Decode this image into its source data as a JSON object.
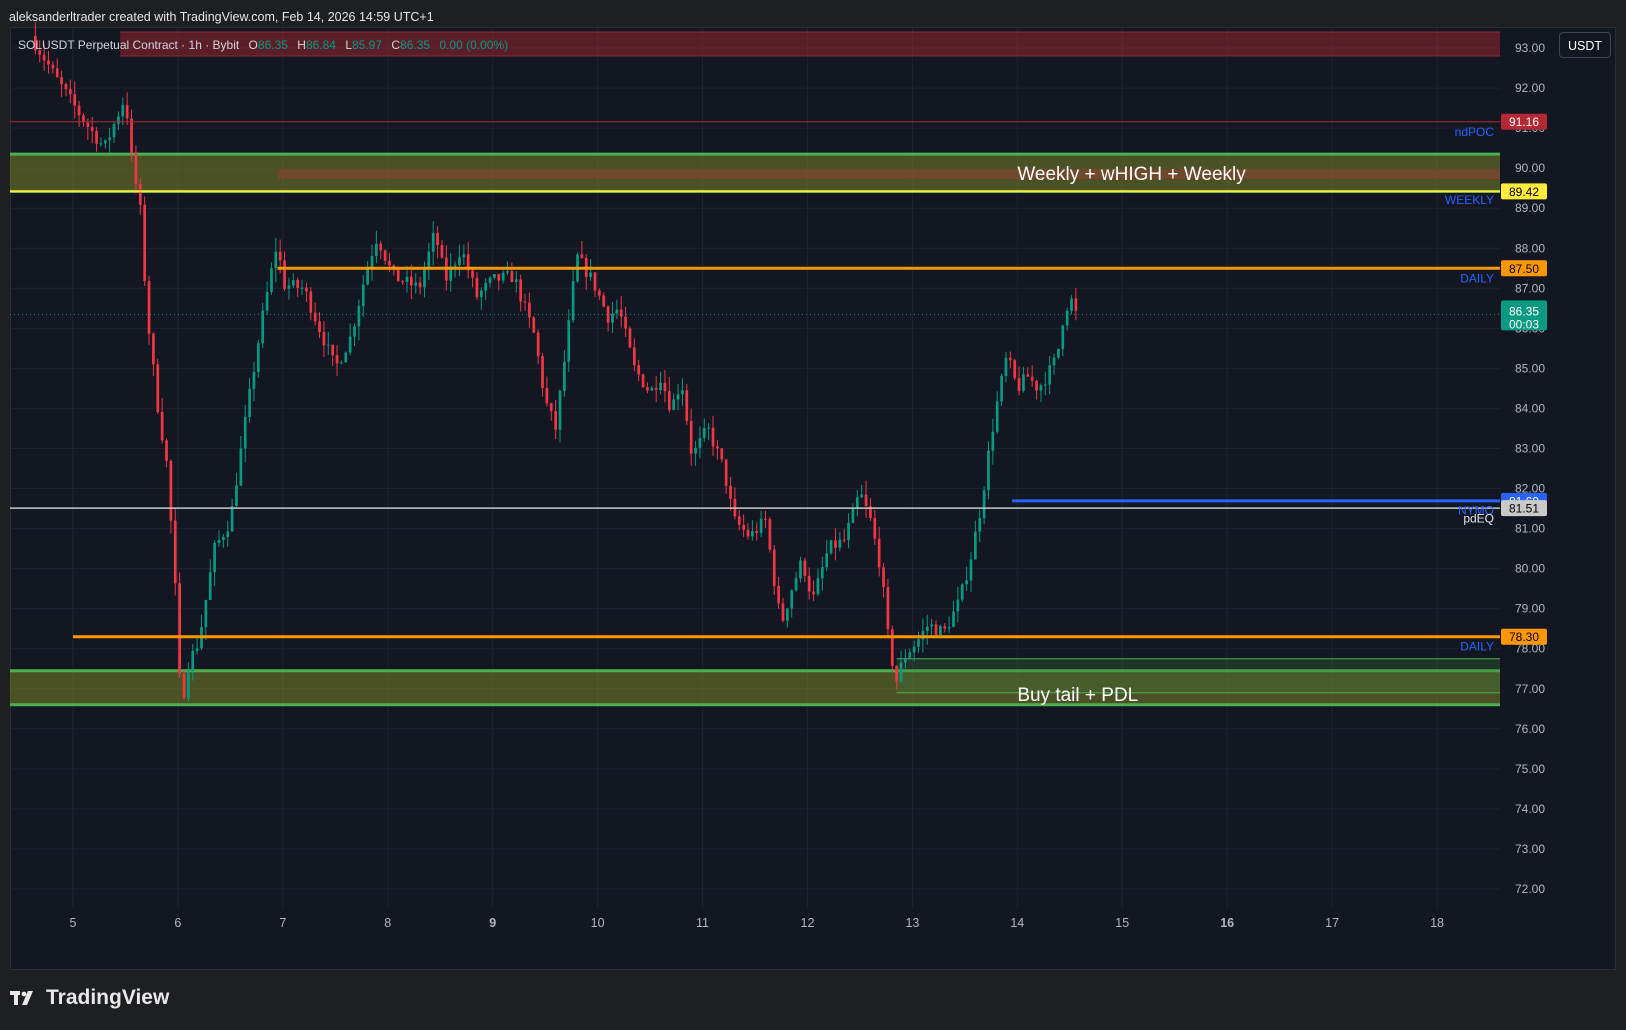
{
  "header": {
    "attribution": "aleksanderltrader created with TradingView.com, Feb 14, 2026 14:59 UTC+1"
  },
  "legend": {
    "symbol": "SOLUSDT Perpetual Contract · 1h · Bybit",
    "open_key": "O",
    "open": "86.35",
    "high_key": "H",
    "high": "86.84",
    "low_key": "L",
    "low": "85.97",
    "close_key": "C",
    "close": "86.35",
    "change": "0.00 (0.00%)"
  },
  "unit_button": "USDT",
  "footer": {
    "brand": "TradingView"
  },
  "colors": {
    "bg": "#131722",
    "up": "#089981",
    "down": "#f23645",
    "grid": "#1f2330",
    "orange": "#ff9800",
    "green": "#4caf50",
    "yellow": "#ffeb3b",
    "blue": "#2962ff"
  },
  "chart_data": {
    "type": "candlestick",
    "timeframe": "1h",
    "ylim": [
      71.5,
      93.5
    ],
    "y_ticks": [
      72,
      73,
      74,
      75,
      76,
      77,
      78,
      79,
      80,
      81,
      82,
      83,
      84,
      85,
      86,
      87,
      88,
      89,
      90,
      91,
      92,
      93
    ],
    "y_tick_labels": [
      "72.00",
      "73.00",
      "74.00",
      "75.00",
      "76.00",
      "77.00",
      "78.00",
      "79.00",
      "80.00",
      "81.00",
      "82.00",
      "83.00",
      "84.00",
      "85.00",
      "86.00",
      "87.00",
      "88.00",
      "89.00",
      "90.00",
      "91.00",
      "92.00",
      "93.00"
    ],
    "xlim": [
      4.4,
      18.6
    ],
    "x_ticks": [
      {
        "x": 5,
        "label": "5",
        "bold": false
      },
      {
        "x": 6,
        "label": "6",
        "bold": false
      },
      {
        "x": 7,
        "label": "7",
        "bold": false
      },
      {
        "x": 8,
        "label": "8",
        "bold": false
      },
      {
        "x": 9,
        "label": "9",
        "bold": true
      },
      {
        "x": 10,
        "label": "10",
        "bold": false
      },
      {
        "x": 11,
        "label": "11",
        "bold": false
      },
      {
        "x": 12,
        "label": "12",
        "bold": false
      },
      {
        "x": 13,
        "label": "13",
        "bold": false
      },
      {
        "x": 14,
        "label": "14",
        "bold": false
      },
      {
        "x": 15,
        "label": "15",
        "bold": false
      },
      {
        "x": 16,
        "label": "16",
        "bold": true
      },
      {
        "x": 17,
        "label": "17",
        "bold": false
      },
      {
        "x": 18,
        "label": "18",
        "bold": false
      }
    ],
    "price_path": [
      [
        4.6,
        93.3
      ],
      [
        4.85,
        92.2
      ],
      [
        5.1,
        91.2
      ],
      [
        5.3,
        90.5
      ],
      [
        5.5,
        91.8
      ],
      [
        5.55,
        90.4
      ],
      [
        5.65,
        88.8
      ],
      [
        5.7,
        86.5
      ],
      [
        5.8,
        84.2
      ],
      [
        5.9,
        82.5
      ],
      [
        6.0,
        78.5
      ],
      [
        6.03,
        76.2
      ],
      [
        6.08,
        77.5
      ],
      [
        6.2,
        78.2
      ],
      [
        6.35,
        80.5
      ],
      [
        6.5,
        81.2
      ],
      [
        6.65,
        83.8
      ],
      [
        6.8,
        86.2
      ],
      [
        6.95,
        88.2
      ],
      [
        7.0,
        87.1
      ],
      [
        7.2,
        87.0
      ],
      [
        7.35,
        86.0
      ],
      [
        7.5,
        85.0
      ],
      [
        7.65,
        85.8
      ],
      [
        7.8,
        87.5
      ],
      [
        7.9,
        88.3
      ],
      [
        8.05,
        87.3
      ],
      [
        8.3,
        87.0
      ],
      [
        8.45,
        88.4
      ],
      [
        8.55,
        87.2
      ],
      [
        8.7,
        88.0
      ],
      [
        8.85,
        86.8
      ],
      [
        9.0,
        87.2
      ],
      [
        9.2,
        87.3
      ],
      [
        9.4,
        85.8
      ],
      [
        9.5,
        84.2
      ],
      [
        9.6,
        83.5
      ],
      [
        9.7,
        85.5
      ],
      [
        9.8,
        87.8
      ],
      [
        9.95,
        87.2
      ],
      [
        10.1,
        86.3
      ],
      [
        10.2,
        86.5
      ],
      [
        10.35,
        85.0
      ],
      [
        10.5,
        84.4
      ],
      [
        10.6,
        84.8
      ],
      [
        10.7,
        84.0
      ],
      [
        10.8,
        84.7
      ],
      [
        10.9,
        82.8
      ],
      [
        11.05,
        83.5
      ],
      [
        11.2,
        82.5
      ],
      [
        11.3,
        81.2
      ],
      [
        11.45,
        80.8
      ],
      [
        11.6,
        81.2
      ],
      [
        11.7,
        79.4
      ],
      [
        11.75,
        78.6
      ],
      [
        11.85,
        79.5
      ],
      [
        11.95,
        80.2
      ],
      [
        12.05,
        79.2
      ],
      [
        12.2,
        80.5
      ],
      [
        12.35,
        80.7
      ],
      [
        12.5,
        81.9
      ],
      [
        12.6,
        81.2
      ],
      [
        12.7,
        80.0
      ],
      [
        12.78,
        78.0
      ],
      [
        12.85,
        77.2
      ],
      [
        12.92,
        77.8
      ],
      [
        13.05,
        78.2
      ],
      [
        13.15,
        78.6
      ],
      [
        13.3,
        78.4
      ],
      [
        13.45,
        79.2
      ],
      [
        13.55,
        80.2
      ],
      [
        13.65,
        81.5
      ],
      [
        13.75,
        83.3
      ],
      [
        13.82,
        84.3
      ],
      [
        13.9,
        85.3
      ],
      [
        14.0,
        84.5
      ],
      [
        14.1,
        84.8
      ],
      [
        14.2,
        84.5
      ],
      [
        14.3,
        84.9
      ],
      [
        14.38,
        85.3
      ],
      [
        14.45,
        86.5
      ],
      [
        14.52,
        86.7
      ],
      [
        14.56,
        86.35
      ]
    ],
    "last_price": {
      "y": 86.35,
      "label": "86.35",
      "countdown": "00:03"
    },
    "levels": [
      {
        "y": 91.16,
        "x_from": 4.4,
        "color": "#b22833",
        "width": 1,
        "tag": "91.16",
        "tag_bg": "#b22833",
        "tag_fg": "#ffffff",
        "name": "ndPOC",
        "name_color": "#2962ff",
        "name_y": 90.9
      },
      {
        "y": 89.42,
        "x_from": 4.4,
        "color": "#ffeb3b",
        "width": 2,
        "tag": "89.42",
        "tag_bg": "#ffeb3b",
        "tag_fg": "#000000",
        "name": "WEEKLY",
        "name_color": "#2962ff",
        "name_y": 89.2
      },
      {
        "y": 87.5,
        "x_from": 6.95,
        "color": "#ff9800",
        "width": 3,
        "tag": "87.50",
        "tag_bg": "#ff9800",
        "tag_fg": "#000000",
        "name": "DAILY",
        "name_color": "#2962ff",
        "name_y": 87.25
      },
      {
        "y": 81.69,
        "x_from": 13.95,
        "color": "#2962ff",
        "width": 3,
        "tag": "81.69",
        "tag_bg": "#2962ff",
        "tag_fg": "#ffffff",
        "name": "NYMO",
        "name_color": "#2962ff",
        "name_y": 81.45
      },
      {
        "y": 81.51,
        "x_from": 4.4,
        "color": "#c9c9c9",
        "width": 1.5,
        "tag": "81.51",
        "tag_bg": "#c9c9c9",
        "tag_fg": "#000000",
        "name": "pdEQ",
        "name_color": "#e6e6e6",
        "name_y": 81.25
      },
      {
        "y": 78.3,
        "x_from": 5.0,
        "color": "#ff9800",
        "width": 3,
        "tag": "78.30",
        "tag_bg": "#ff9800",
        "tag_fg": "#000000",
        "name": "DAILY",
        "name_color": "#2962ff",
        "name_y": 78.05
      }
    ],
    "zones": [
      {
        "y1": 92.8,
        "y2": 93.4,
        "x_from": 5.45,
        "fill": "rgba(178,40,51,0.45)",
        "border": "#8e2a33",
        "border_w": 1
      },
      {
        "y1": 89.42,
        "y2": 90.35,
        "x_from": 4.4,
        "fill": "rgba(111,122,40,0.6)",
        "border": "#4caf50",
        "border_w": 3
      },
      {
        "y1": 89.75,
        "y2": 89.95,
        "x_from": 6.95,
        "fill": "rgba(178,60,60,0.35)",
        "border": "#8e3a33",
        "border_w": 1
      },
      {
        "y1": 76.6,
        "y2": 77.45,
        "x_from": 4.4,
        "fill": "rgba(111,122,40,0.6)",
        "border": "#4caf50",
        "border_w": 3
      },
      {
        "y1": 76.9,
        "y2": 77.75,
        "x_from": 12.85,
        "fill": "rgba(60,120,60,0.3)",
        "border": "#4caf50",
        "border_w": 1
      }
    ],
    "annotations": [
      {
        "text": "Weekly + wHIGH + Weekly",
        "x": 14.0,
        "y": 89.85,
        "color": "#ffffff"
      },
      {
        "text": "Buy tail + PDL",
        "x": 14.0,
        "y": 76.85,
        "color": "#ffffff"
      }
    ]
  }
}
